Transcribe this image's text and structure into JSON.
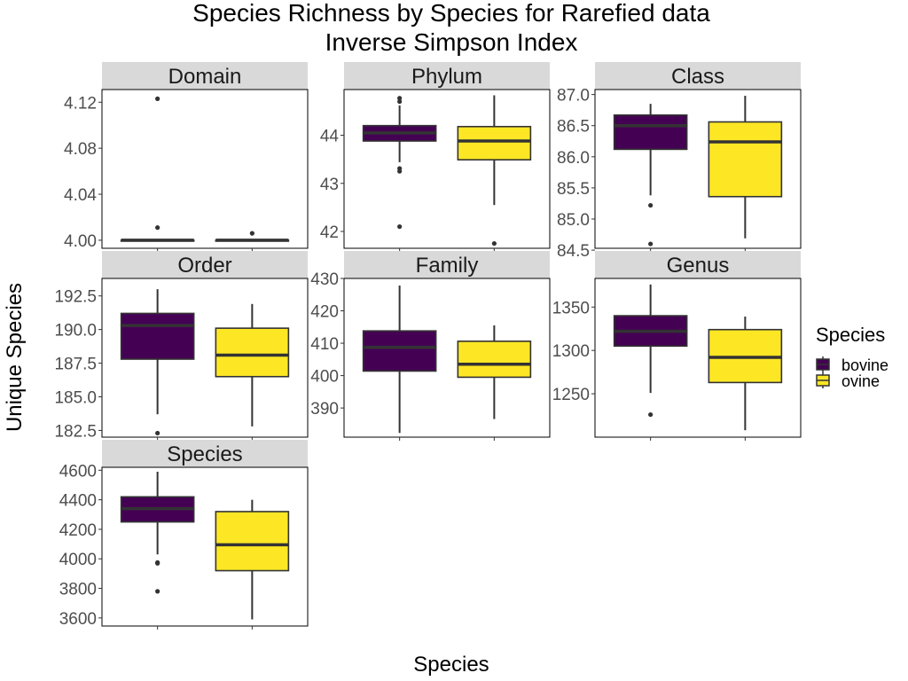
{
  "chart_data": {
    "type": "boxplot",
    "title": "Species Richness by Species for Rarefied data",
    "subtitle": "Inverse Simpson Index",
    "xlabel": "Species",
    "ylabel": "Unique Species",
    "legend": {
      "title": "Species",
      "position": "right",
      "entries": [
        {
          "name": "bovine",
          "color": "#440154"
        },
        {
          "name": "ovine",
          "color": "#FDE725"
        }
      ]
    },
    "grid": false,
    "panels": [
      {
        "name": "Domain",
        "ylim": [
          3.993,
          4.131
        ],
        "yticks": [
          4.0,
          4.04,
          4.08,
          4.12
        ],
        "ytick_labels": [
          "4.00",
          "4.04",
          "4.08",
          "4.12"
        ],
        "boxes": [
          {
            "group": "bovine",
            "min": 4.0,
            "q1": 4.0,
            "median": 4.0,
            "q3": 4.0,
            "max": 4.0,
            "outliers": [
              4.123,
              4.011
            ]
          },
          {
            "group": "ovine",
            "min": 4.0,
            "q1": 4.0,
            "median": 4.0,
            "q3": 4.0,
            "max": 4.0,
            "outliers": [
              4.006
            ]
          }
        ]
      },
      {
        "name": "Phylum",
        "ylim": [
          41.65,
          44.95
        ],
        "yticks": [
          42,
          43,
          44
        ],
        "ytick_labels": [
          "42",
          "43",
          "44"
        ],
        "boxes": [
          {
            "group": "bovine",
            "min": 43.44,
            "q1": 43.88,
            "median": 44.05,
            "q3": 44.2,
            "max": 44.62,
            "outliers": [
              44.77,
              44.7,
              43.31,
              43.25,
              42.1
            ]
          },
          {
            "group": "ovine",
            "min": 42.55,
            "q1": 43.49,
            "median": 43.88,
            "q3": 44.18,
            "max": 44.83,
            "outliers": [
              41.75
            ]
          }
        ]
      },
      {
        "name": "Class",
        "ylim": [
          84.53,
          87.08
        ],
        "yticks": [
          84.5,
          85.0,
          85.5,
          86.0,
          86.5,
          87.0
        ],
        "ytick_labels": [
          "84.5",
          "85.0",
          "85.5",
          "86.0",
          "86.5",
          "87.0"
        ],
        "boxes": [
          {
            "group": "bovine",
            "min": 85.38,
            "q1": 86.12,
            "median": 86.5,
            "q3": 86.67,
            "max": 86.85,
            "outliers": [
              85.22,
              84.6
            ]
          },
          {
            "group": "ovine",
            "min": 84.69,
            "q1": 85.36,
            "median": 86.24,
            "q3": 86.56,
            "max": 86.98,
            "outliers": []
          }
        ]
      },
      {
        "name": "Order",
        "ylim": [
          182.0,
          193.8
        ],
        "yticks": [
          182.5,
          185.0,
          187.5,
          190.0,
          192.5
        ],
        "ytick_labels": [
          "182.5",
          "185.0",
          "187.5",
          "190.0",
          "192.5"
        ],
        "boxes": [
          {
            "group": "bovine",
            "min": 183.7,
            "q1": 187.8,
            "median": 190.3,
            "q3": 191.2,
            "max": 193.0,
            "outliers": [
              182.3
            ]
          },
          {
            "group": "ovine",
            "min": 182.8,
            "q1": 186.5,
            "median": 188.1,
            "q3": 190.1,
            "max": 191.9,
            "outliers": []
          }
        ]
      },
      {
        "name": "Family",
        "ylim": [
          381,
          430
        ],
        "yticks": [
          390,
          400,
          410,
          420,
          430
        ],
        "ytick_labels": [
          "390",
          "400",
          "410",
          "420",
          "430"
        ],
        "boxes": [
          {
            "group": "bovine",
            "min": 382.3,
            "q1": 401.4,
            "median": 408.7,
            "q3": 413.8,
            "max": 427.8,
            "outliers": []
          },
          {
            "group": "ovine",
            "min": 386.6,
            "q1": 399.5,
            "median": 403.5,
            "q3": 410.6,
            "max": 415.5,
            "outliers": []
          }
        ]
      },
      {
        "name": "Genus",
        "ylim": [
          1200,
          1383
        ],
        "yticks": [
          1250,
          1300,
          1350
        ],
        "ytick_labels": [
          "1250",
          "1300",
          "1350"
        ],
        "boxes": [
          {
            "group": "bovine",
            "min": 1251,
            "q1": 1305,
            "median": 1322,
            "q3": 1340,
            "max": 1376,
            "outliers": [
              1226
            ]
          },
          {
            "group": "ovine",
            "min": 1208,
            "q1": 1263,
            "median": 1292,
            "q3": 1324,
            "max": 1339,
            "outliers": []
          }
        ]
      },
      {
        "name": "Species",
        "ylim": [
          3545,
          4620
        ],
        "yticks": [
          3600,
          3800,
          4000,
          4200,
          4400,
          4600
        ],
        "ytick_labels": [
          "3600",
          "3800",
          "4000",
          "4200",
          "4400",
          "4600"
        ],
        "boxes": [
          {
            "group": "bovine",
            "min": 4030,
            "q1": 4250,
            "median": 4340,
            "q3": 4420,
            "max": 4590,
            "outliers": [
              3975,
              3970,
              3780
            ]
          },
          {
            "group": "ovine",
            "min": 3590,
            "q1": 3920,
            "median": 4095,
            "q3": 4320,
            "max": 4400,
            "outliers": []
          }
        ]
      }
    ]
  }
}
